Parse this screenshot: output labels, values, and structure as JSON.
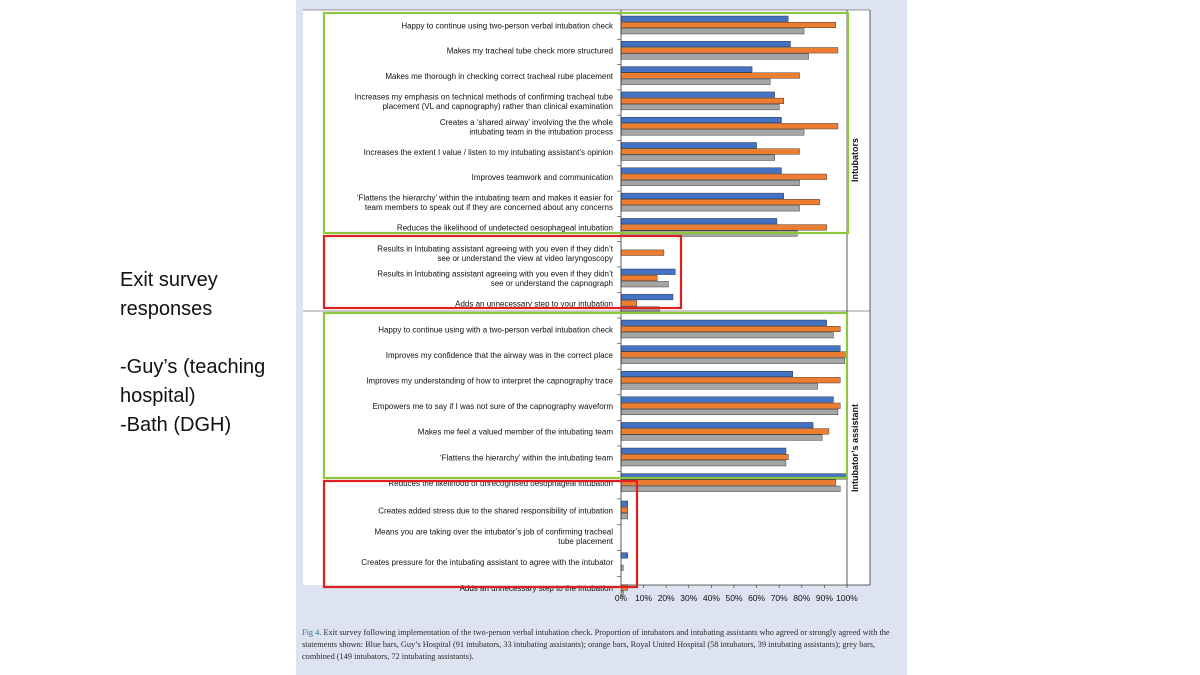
{
  "side_text": {
    "line1": "Exit survey",
    "line2": "responses",
    "line3": "-Guy’s (teaching",
    "line4": "hospital)",
    "line5": "-Bath (DGH)"
  },
  "caption": {
    "label": "Fig 4.",
    "text": "Exit survey following implementation of the two-person verbal intubation check. Proportion of intubators and intubating assistants who agreed or strongly agreed with the statements shown: Blue bars, Guy’s Hospital (91 intubators, 33 intubating assistants); orange bars, Royal United Hospital (58 intubators, 39 intubating assistants); grey bars, combined (149 intubators, 72 intubating assistants)."
  },
  "colors": {
    "series_blue": "#4472c4",
    "series_orange": "#ed7d31",
    "series_grey": "#a5a5a5",
    "box_green": "#8dc63f",
    "box_red": "#e02020",
    "panel_bg": "#dde3f0"
  },
  "chart_data": {
    "type": "bar",
    "orientation": "horizontal",
    "x_ticks": [
      "0%",
      "10%",
      "20%",
      "30%",
      "40%",
      "50%",
      "60%",
      "70%",
      "80%",
      "90%",
      "100%"
    ],
    "xlim": [
      0,
      100
    ],
    "groups": [
      {
        "label": "Intubators",
        "categories": [
          [
            "Happy to continue using two-person verbal intubation check"
          ],
          [
            "Makes my tracheal tube check more structured"
          ],
          [
            "Makes me thorough in checking correct tracheal rube placement"
          ],
          [
            "Increases my emphasis on technical methods of confirming tracheal tube",
            "placement (VL and capnography) rather than clinical examination"
          ],
          [
            "Creates a ‘shared airway’ involving the the whole",
            "intubating team in the intubation process"
          ],
          [
            "Increases the extent I value / listen to my intubating assistant’s opinion"
          ],
          [
            "Improves teamwork and communication"
          ],
          [
            "‘Flattens the hierarchy’ within the intubating team and makes it easier for",
            "team members to speak out if they are concerned about any concerns"
          ],
          [
            "Reduces the likelihood of undetected oesophageal intubation"
          ],
          [
            "Results in Intubating assistant agreeing with you even if they didn’t",
            "see or understand the view at video laryngoscopy"
          ],
          [
            "Results in Intubating assistant agreeing with you even if they didn’t",
            "see or understand the capnograph"
          ],
          [
            "Adds an unnecessary step to your intubation"
          ]
        ],
        "series": [
          {
            "color": "blue",
            "values": [
              74,
              75,
              58,
              68,
              71,
              60,
              71,
              72,
              69,
              0,
              24,
              23
            ]
          },
          {
            "color": "orange",
            "values": [
              95,
              96,
              79,
              72,
              96,
              79,
              91,
              88,
              91,
              19,
              16,
              7
            ]
          },
          {
            "color": "grey",
            "values": [
              81,
              83,
              66,
              70,
              81,
              68,
              79,
              79,
              78,
              0,
              21,
              17
            ]
          }
        ]
      },
      {
        "label": "Intubator’s assistant",
        "categories": [
          [
            "Happy to continue using with a two-person verbal intubation check"
          ],
          [
            "Improves my confidence that the airway was in the correct place"
          ],
          [
            "Improves my understanding of how to interpret the capnography trace"
          ],
          [
            "Empowers me to say if I was not sure of the capnography waveform"
          ],
          [
            "Makes me feel a valued member of the intubating team"
          ],
          [
            "‘Flattens the hierarchy’ within the intubating team"
          ],
          [
            "Reduces the likelihood of unrecognised oesophageal intubation"
          ],
          [
            "Creates added stress due to the shared responsibility of intubation"
          ],
          [
            "Means you are taking over the intubator’s job of confirming tracheal",
            "tube placement"
          ],
          [
            "Creates pressure for the intubating assistant to agree with the intubator"
          ],
          [
            "Adds an unnecessary step to the intubation"
          ]
        ],
        "series": [
          {
            "color": "blue",
            "values": [
              91,
              97,
              76,
              94,
              85,
              73,
              100,
              3,
              0,
              3,
              0
            ]
          },
          {
            "color": "orange",
            "values": [
              97,
              100,
              97,
              97,
              92,
              74,
              95,
              3,
              0,
              0,
              3
            ]
          },
          {
            "color": "grey",
            "values": [
              94,
              99,
              87,
              96,
              89,
              73,
              97,
              3,
              0,
              1,
              1
            ]
          }
        ]
      }
    ]
  }
}
